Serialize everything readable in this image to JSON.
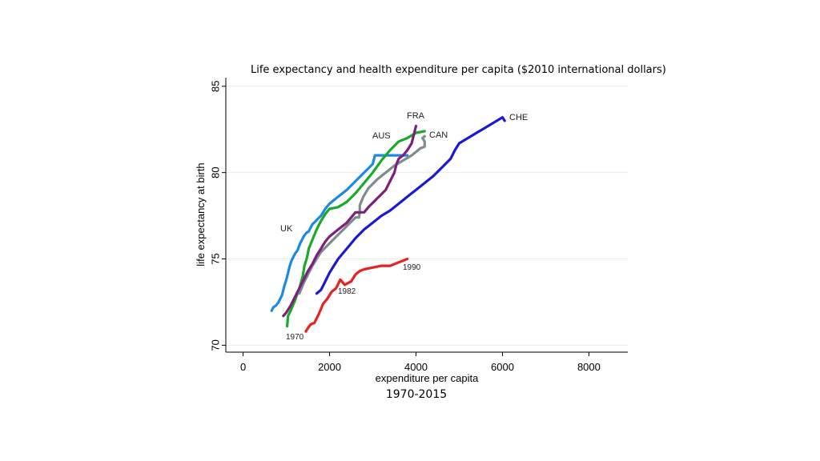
{
  "chart_data": {
    "type": "line",
    "title": "Life expectancy and health expenditure per capita ($2010 international dollars)",
    "subtitle": "1970-2015",
    "xlabel": "expenditure per capita",
    "ylabel": "life expectancy at birth",
    "xlim": [
      -400,
      8900
    ],
    "ylim": [
      69.6,
      85.5
    ],
    "xticks": [
      0,
      2000,
      4000,
      6000,
      8000
    ],
    "xtick_labels": [
      "0",
      "2000",
      "4000",
      "6000",
      "8000"
    ],
    "yticks": [
      70,
      75,
      80,
      85
    ],
    "ytick_labels": [
      "70",
      "75",
      "80",
      "85"
    ],
    "grid": true,
    "series": [
      {
        "name": "UK",
        "color": "#1e88e5",
        "x": [
          660,
          700,
          760,
          820,
          900,
          950,
          1000,
          1050,
          1080,
          1120,
          1200,
          1260,
          1320,
          1400,
          1460,
          1520,
          1560,
          1600,
          1680,
          1720,
          1800,
          1900,
          2000,
          2200,
          2400,
          2600,
          2800,
          3000,
          3050,
          3300,
          3600,
          3800
        ],
        "y": [
          72.0,
          72.2,
          72.3,
          72.5,
          72.9,
          73.4,
          73.8,
          74.3,
          74.6,
          74.9,
          75.3,
          75.5,
          75.9,
          76.3,
          76.5,
          76.6,
          76.8,
          77.0,
          77.2,
          77.3,
          77.5,
          77.9,
          78.2,
          78.6,
          79.0,
          79.5,
          80.0,
          80.5,
          81.0,
          81.0,
          81.0,
          81.0
        ]
      },
      {
        "name": "AUS",
        "color": "#1aaa2a",
        "x": [
          1020,
          1040,
          1100,
          1200,
          1300,
          1380,
          1420,
          1480,
          1520,
          1600,
          1700,
          1800,
          1900,
          2000,
          2200,
          2400,
          2600,
          2800,
          3000,
          3200,
          3400,
          3600,
          3800,
          4000,
          4200
        ],
        "y": [
          71.1,
          71.7,
          72.0,
          72.6,
          73.3,
          74.0,
          74.6,
          75.1,
          75.6,
          76.1,
          76.7,
          77.2,
          77.6,
          77.9,
          78.0,
          78.3,
          78.8,
          79.4,
          80.0,
          80.7,
          81.3,
          81.8,
          82.0,
          82.3,
          82.4
        ]
      },
      {
        "name": "CAN",
        "color": "#7f8c8d",
        "x": [
          1300,
          1400,
          1500,
          1600,
          1700,
          1800,
          2000,
          2200,
          2400,
          2600,
          2680,
          2700,
          2700,
          2780,
          2900,
          3100,
          3300,
          3500,
          3700,
          3900,
          4100,
          4200,
          4200,
          4150,
          4200
        ],
        "y": [
          73.0,
          73.6,
          74.1,
          74.6,
          75.0,
          75.4,
          75.9,
          76.4,
          76.9,
          77.4,
          77.4,
          77.7,
          78.1,
          78.6,
          79.1,
          79.6,
          80.0,
          80.4,
          80.7,
          81.0,
          81.4,
          81.5,
          81.8,
          82.0,
          82.1
        ]
      },
      {
        "name": "FRA",
        "color": "#7d1f7d",
        "x": [
          930,
          1000,
          1100,
          1200,
          1300,
          1400,
          1500,
          1600,
          1700,
          1800,
          1900,
          2000,
          2200,
          2400,
          2600,
          2800,
          2900,
          3100,
          3300,
          3400,
          3500,
          3550,
          3600,
          3700,
          3800,
          3900,
          4000
        ],
        "y": [
          71.7,
          71.9,
          72.3,
          72.8,
          73.3,
          73.8,
          74.3,
          74.7,
          75.2,
          75.6,
          76.0,
          76.3,
          76.7,
          77.1,
          77.7,
          77.7,
          78.0,
          78.5,
          79.0,
          79.5,
          80.0,
          80.5,
          80.8,
          81.0,
          81.3,
          81.7,
          82.7
        ]
      },
      {
        "name": "CHE",
        "color": "#1a1ad4",
        "x": [
          1700,
          1800,
          1900,
          2000,
          2100,
          2200,
          2400,
          2600,
          2800,
          3000,
          3200,
          3400,
          3600,
          3800,
          4000,
          4200,
          4400,
          4600,
          4800,
          4900,
          5000,
          5200,
          5400,
          5600,
          5800,
          6000,
          6050
        ],
        "y": [
          73.0,
          73.2,
          73.7,
          74.2,
          74.6,
          75.0,
          75.6,
          76.2,
          76.7,
          77.1,
          77.5,
          77.8,
          78.2,
          78.6,
          79.0,
          79.4,
          79.8,
          80.3,
          80.8,
          81.3,
          81.7,
          82.0,
          82.3,
          82.6,
          82.9,
          83.2,
          83.0
        ]
      },
      {
        "name": "",
        "color": "#e52320",
        "x": [
          1450,
          1500,
          1560,
          1650,
          1750,
          1850,
          1950,
          2050,
          2150,
          2250,
          2350,
          2500,
          2600,
          2700,
          2800,
          3000,
          3200,
          3400,
          3600,
          3700,
          3800
        ],
        "y": [
          70.8,
          71.0,
          71.2,
          71.3,
          71.8,
          72.4,
          72.7,
          73.1,
          73.3,
          73.8,
          73.5,
          73.7,
          74.1,
          74.3,
          74.4,
          74.5,
          74.6,
          74.6,
          74.8,
          74.9,
          75.0
        ]
      }
    ],
    "series_labels": [
      "UK",
      "AUS",
      "CAN",
      "FRA",
      "CHE"
    ],
    "annotations": [
      "1970",
      "1982",
      "1990"
    ]
  }
}
